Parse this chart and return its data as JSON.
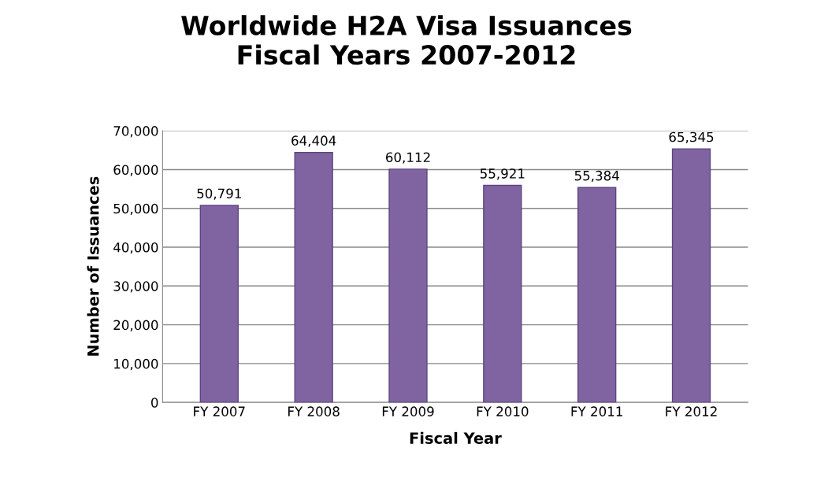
{
  "chart_data": {
    "type": "bar",
    "title": "Worldwide H2A Visa Issuances\nFiscal Years 2007-2012",
    "xlabel": "Fiscal Year",
    "ylabel": "Number of Issuances",
    "categories": [
      "FY 2007",
      "FY 2008",
      "FY 2009",
      "FY 2010",
      "FY 2011",
      "FY 2012"
    ],
    "values": [
      50791,
      64404,
      60112,
      55921,
      55384,
      65345
    ],
    "value_labels": [
      "50,791",
      "64,404",
      "60,112",
      "55,921",
      "55,384",
      "65,345"
    ],
    "color": "#8064a2",
    "ylim": [
      0,
      70000
    ],
    "yticks": [
      0,
      {
        "value": 10000,
        "label": "10,000"
      },
      {
        "value": 20000,
        "label": "20,000"
      },
      {
        "value": 30000,
        "label": "30,000"
      },
      {
        "value": 40000,
        "label": "40,000"
      },
      {
        "value": 50000,
        "label": "50,000"
      },
      {
        "value": 60000,
        "label": "60,000"
      },
      {
        "value": 70000,
        "label": "70,000"
      }
    ],
    "grid": "y"
  }
}
